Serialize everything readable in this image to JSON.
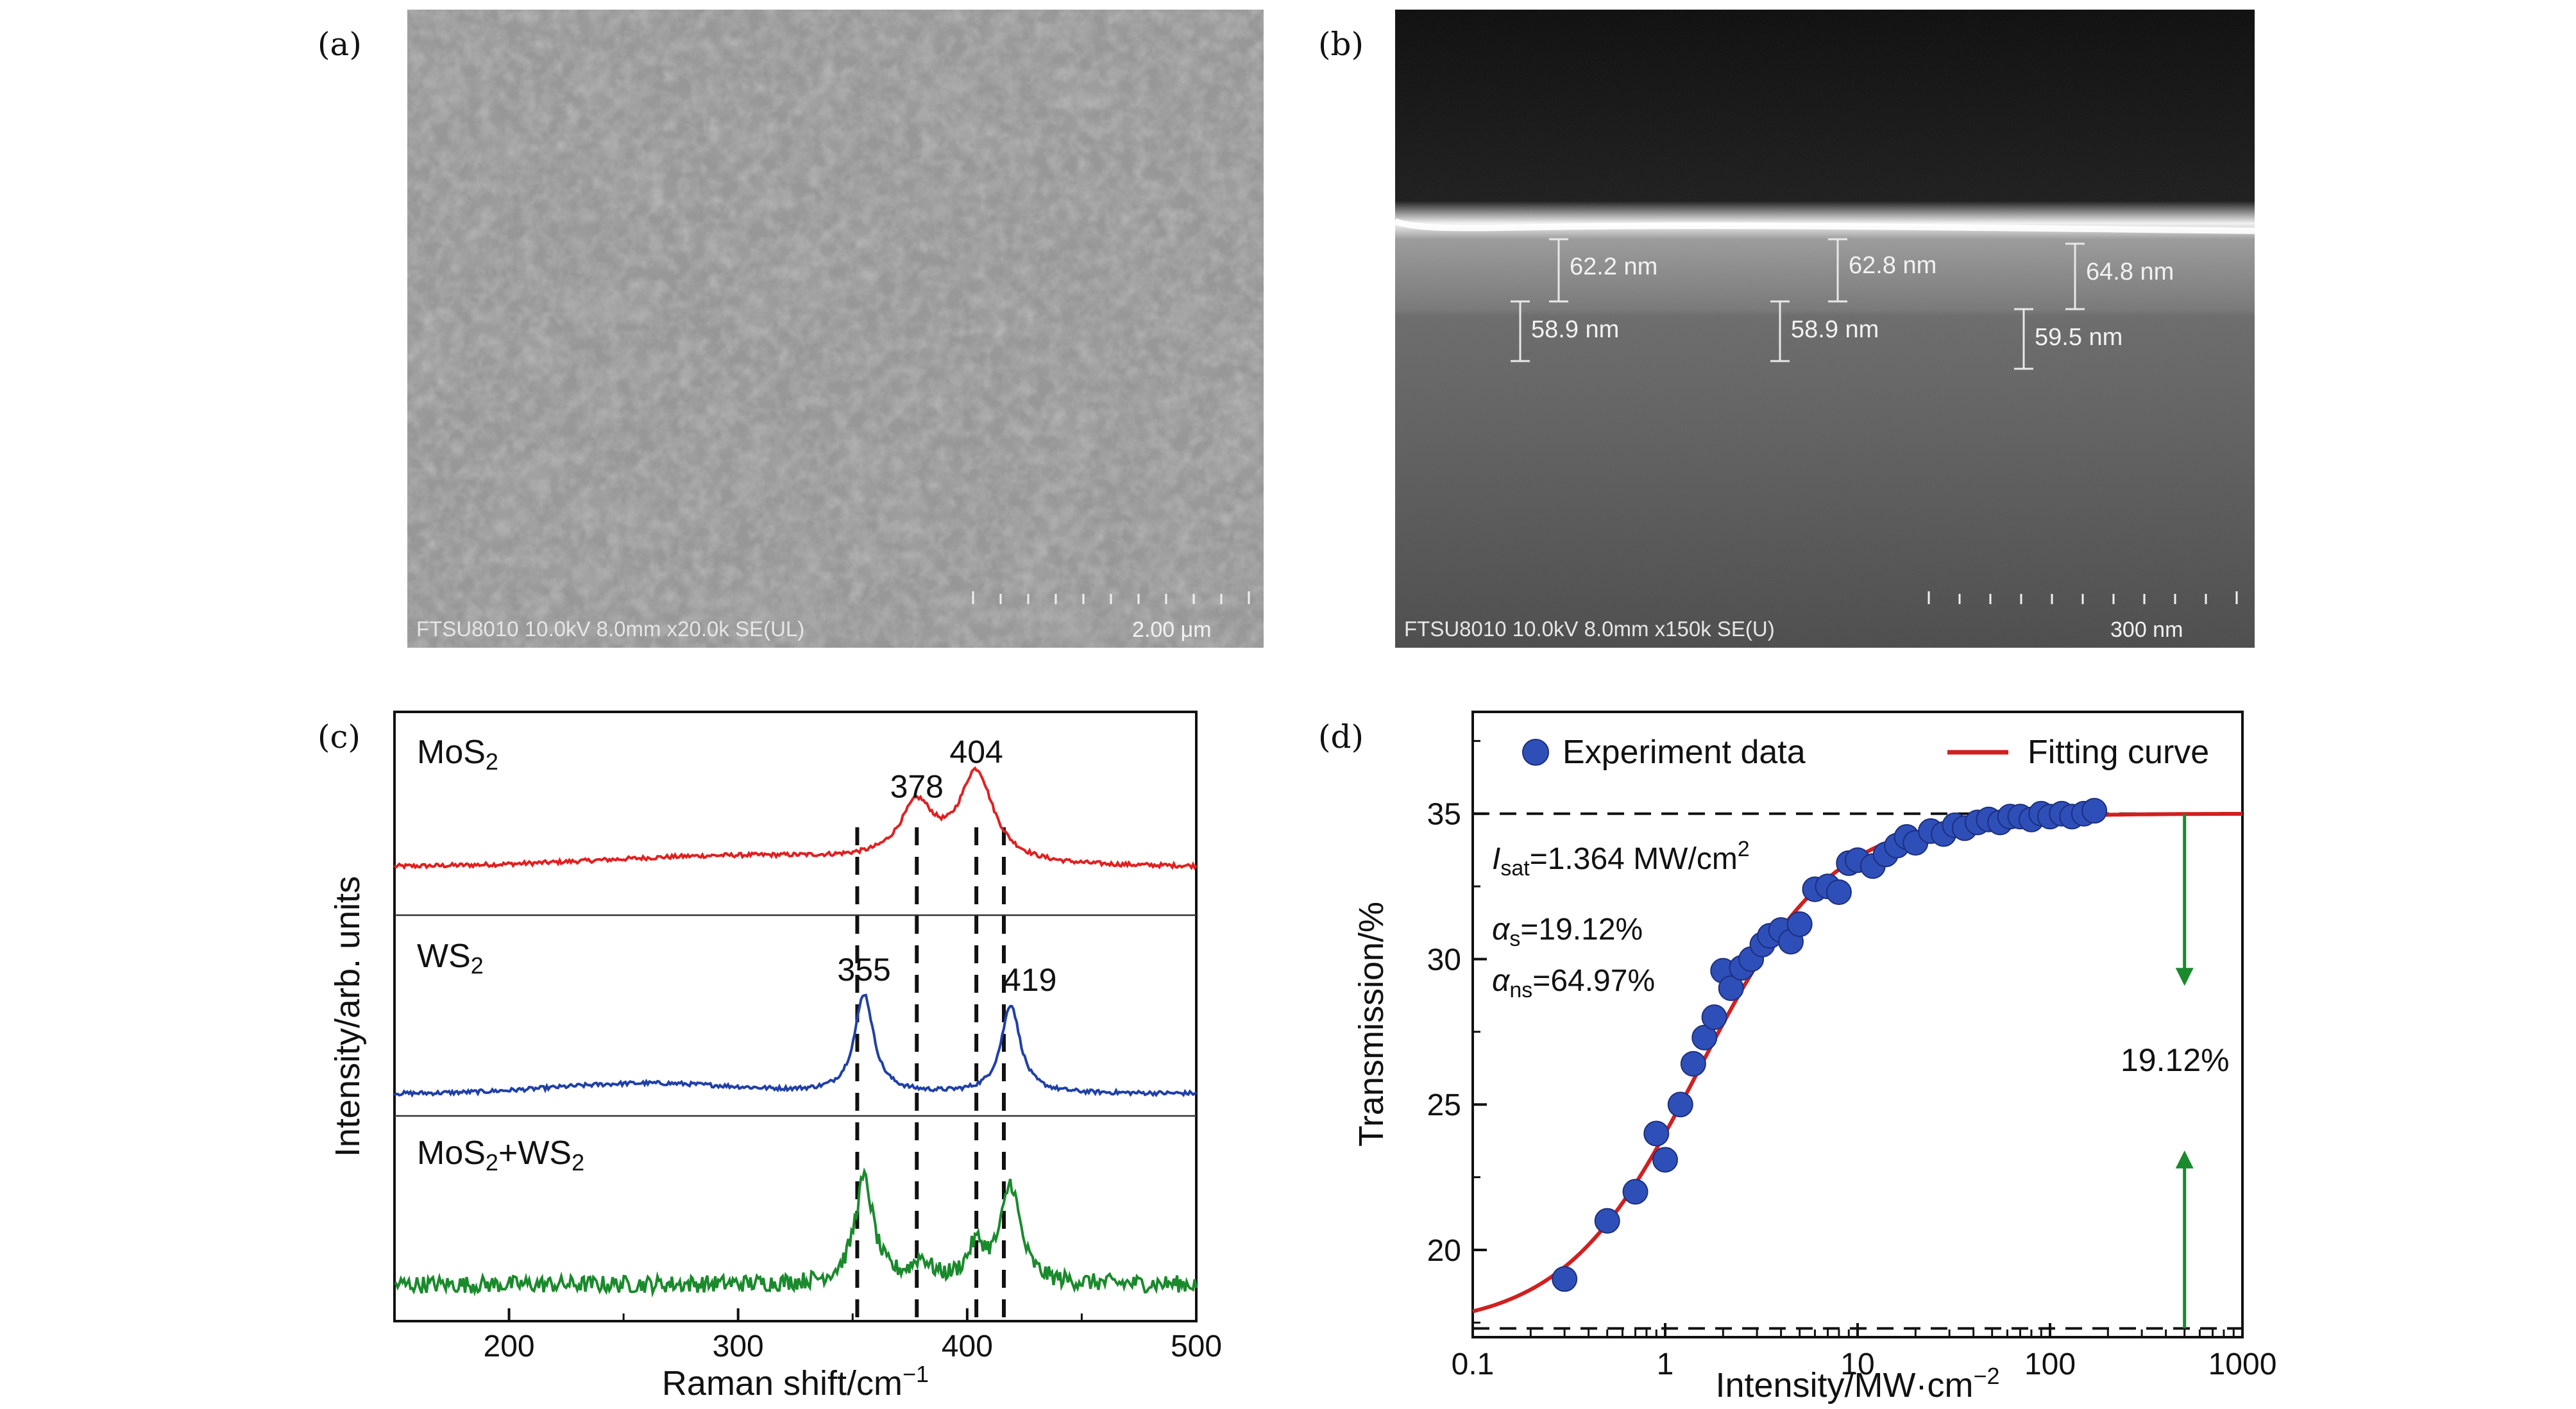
{
  "panels": {
    "a": {
      "label": "(a)",
      "info": "FTSU8010 10.0kV 8.0mm x20.0k SE(UL)",
      "scale": "2.00 μm"
    },
    "b": {
      "label": "(b)",
      "info": "FTSU8010 10.0kV 8.0mm x150k SE(U)",
      "scale": "300 nm",
      "measurements": [
        {
          "upper": "62.2 nm",
          "lower": "58.9 nm"
        },
        {
          "upper": "62.8 nm",
          "lower": "58.9 nm"
        },
        {
          "upper": "64.8 nm",
          "lower": "59.5 nm"
        }
      ]
    },
    "c": {
      "label": "(c)"
    },
    "d": {
      "label": "(d)"
    }
  },
  "chart_data": [
    {
      "type": "line",
      "panel": "c",
      "xlabel": "Raman shift/cm−1",
      "ylabel": "Intensity/arb. units",
      "xlim": [
        150,
        500
      ],
      "xticks": [
        200,
        300,
        400,
        500
      ],
      "series": [
        {
          "name": "MoS2",
          "sub": "2",
          "color": "#e02020",
          "baseline": 0.25,
          "peaks": [
            [
              378,
              0.32,
              9
            ],
            [
              404,
              0.52,
              9
            ]
          ],
          "broad": [
            [
              300,
              0.06,
              60
            ]
          ]
        },
        {
          "name": "WS2",
          "sub": "2",
          "color": "#2040a8",
          "baseline": 0.1,
          "peaks": [
            [
              355,
              0.58,
              5
            ],
            [
              419,
              0.52,
              5
            ]
          ],
          "broad": [
            [
              260,
              0.06,
              40
            ]
          ]
        },
        {
          "name": "MoS2+WS2",
          "color": "#1a8a2c",
          "baseline": 0.18,
          "peaks": [
            [
              355,
              0.6,
              5
            ],
            [
              380,
              0.12,
              5
            ],
            [
              404,
              0.2,
              5
            ],
            [
              419,
              0.56,
              5
            ]
          ],
          "broad": []
        }
      ],
      "peak_labels": [
        {
          "text": "404",
          "x": 404,
          "series": 0
        },
        {
          "text": "378",
          "x": 378,
          "series": 0
        },
        {
          "text": "355",
          "x": 355,
          "series": 1
        },
        {
          "text": "419",
          "x": 419,
          "series": 1
        }
      ],
      "dashed_lines": [
        352,
        378,
        404,
        416
      ]
    },
    {
      "type": "scatter",
      "panel": "d",
      "xlabel": "Intensity/MW·cm−2",
      "ylabel": "Transmission/%",
      "xscale": "log",
      "xlim": [
        0.1,
        1000
      ],
      "ylim": [
        17,
        38.5
      ],
      "xticks": [
        "0.1",
        "1",
        "10",
        "100",
        "1000"
      ],
      "yticks": [
        20,
        25,
        30,
        35
      ],
      "legend": {
        "points": "Experiment data",
        "line": "Fitting curve"
      },
      "annotations": {
        "isat": "I",
        "isat_sub": "sat",
        "isat_val": "=1.364 MW/cm",
        "isat_sup": "2",
        "as": "α",
        "as_sub": "s",
        "as_val": "=19.12%",
        "ans": "α",
        "ans_sub": "ns",
        "ans_val": "=64.97%",
        "mod": "19.12%"
      },
      "hlines": [
        35,
        17.3
      ],
      "arrow_x": 500,
      "fit": {
        "t_max": 35.0,
        "t_min": 17.3,
        "isat": 1.364
      },
      "points": [
        [
          0.3,
          19.0
        ],
        [
          0.5,
          21.0
        ],
        [
          0.7,
          22.0
        ],
        [
          0.9,
          24.0
        ],
        [
          1.0,
          23.1
        ],
        [
          1.2,
          25.0
        ],
        [
          1.4,
          26.4
        ],
        [
          1.6,
          27.3
        ],
        [
          1.8,
          28.0
        ],
        [
          2.0,
          29.6
        ],
        [
          2.2,
          29.0
        ],
        [
          2.5,
          29.7
        ],
        [
          2.8,
          30.0
        ],
        [
          3.2,
          30.5
        ],
        [
          3.5,
          30.8
        ],
        [
          4.0,
          31.0
        ],
        [
          4.5,
          30.6
        ],
        [
          5.0,
          31.2
        ],
        [
          6.0,
          32.4
        ],
        [
          7.0,
          32.5
        ],
        [
          8.0,
          32.3
        ],
        [
          9.0,
          33.3
        ],
        [
          10.0,
          33.4
        ],
        [
          12.0,
          33.2
        ],
        [
          14.0,
          33.6
        ],
        [
          16.0,
          33.9
        ],
        [
          18.0,
          34.2
        ],
        [
          20.0,
          34.0
        ],
        [
          24.0,
          34.4
        ],
        [
          28.0,
          34.3
        ],
        [
          32.0,
          34.6
        ],
        [
          36.0,
          34.5
        ],
        [
          42.0,
          34.7
        ],
        [
          48.0,
          34.8
        ],
        [
          55.0,
          34.7
        ],
        [
          62.0,
          34.9
        ],
        [
          70.0,
          34.9
        ],
        [
          80.0,
          34.8
        ],
        [
          90.0,
          35.0
        ],
        [
          100.0,
          34.9
        ],
        [
          115.0,
          35.0
        ],
        [
          130.0,
          34.9
        ],
        [
          150.0,
          35.0
        ],
        [
          170.0,
          35.1
        ]
      ]
    }
  ]
}
